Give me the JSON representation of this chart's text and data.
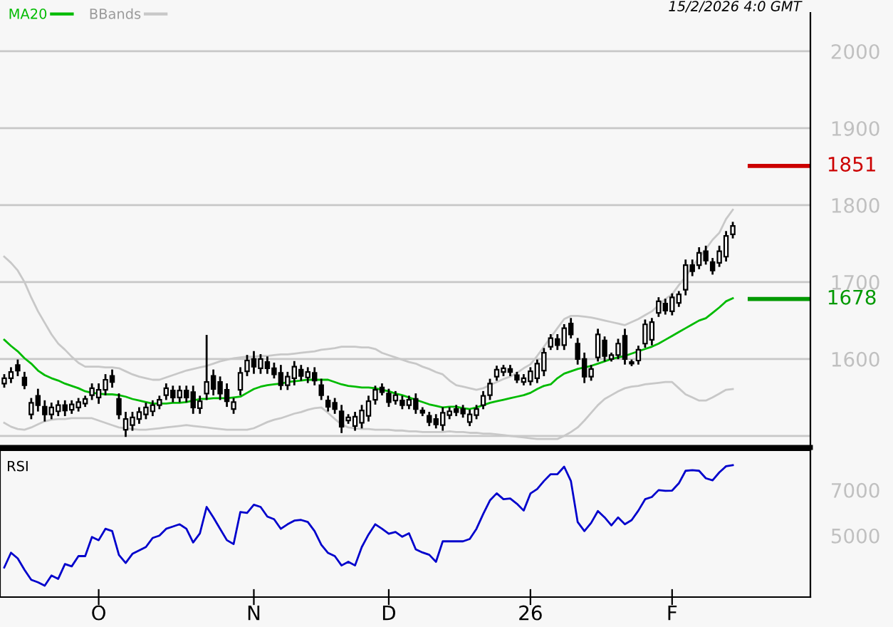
{
  "chart_data": [
    {
      "type": "candlestick",
      "categories": [
        null,
        null,
        null,
        null,
        null,
        null,
        null,
        null,
        null,
        null,
        null,
        null,
        null,
        null,
        null,
        null,
        null,
        null,
        null,
        null,
        null,
        null,
        null,
        null,
        null,
        null,
        null,
        null,
        null,
        null,
        null,
        null,
        null,
        null,
        null,
        null,
        null,
        null,
        null,
        null,
        null,
        null,
        null,
        null,
        null,
        null,
        null,
        null,
        null,
        null,
        null,
        null,
        null,
        null,
        null,
        null,
        null,
        null,
        null,
        null,
        null,
        null,
        null,
        null,
        null,
        null,
        null,
        null,
        null,
        null,
        null,
        null,
        null,
        null,
        null,
        null,
        null,
        null,
        null,
        null,
        null,
        null,
        null,
        null,
        null,
        null,
        null,
        null,
        null,
        null,
        null,
        null,
        null,
        null,
        null,
        null,
        null,
        null,
        null,
        null,
        null,
        null,
        null,
        null,
        null,
        null,
        null,
        null,
        null
      ],
      "ohlc": [
        [
          1568,
          1579,
          1564,
          1575
        ],
        [
          1575,
          1588,
          1570,
          1583
        ],
        [
          1592,
          1598,
          1579,
          1585
        ],
        [
          1576,
          1582,
          1562,
          1566
        ],
        [
          1528,
          1548,
          1523,
          1543
        ],
        [
          1552,
          1560,
          1533,
          1540
        ],
        [
          1538,
          1545,
          1520,
          1528
        ],
        [
          1528,
          1542,
          1523,
          1537
        ],
        [
          1532,
          1545,
          1527,
          1540
        ],
        [
          1540,
          1545,
          1527,
          1533
        ],
        [
          1534,
          1545,
          1530,
          1541
        ],
        [
          1537,
          1548,
          1533,
          1544
        ],
        [
          1542,
          1551,
          1539,
          1548
        ],
        [
          1553,
          1567,
          1548,
          1562
        ],
        [
          1550,
          1567,
          1543,
          1560
        ],
        [
          1560,
          1579,
          1554,
          1573
        ],
        [
          1578,
          1585,
          1564,
          1570
        ],
        [
          1548,
          1554,
          1523,
          1528
        ],
        [
          1508,
          1530,
          1500,
          1522
        ],
        [
          1514,
          1530,
          1508,
          1524
        ],
        [
          1522,
          1536,
          1517,
          1531
        ],
        [
          1528,
          1542,
          1523,
          1537
        ],
        [
          1532,
          1545,
          1527,
          1540
        ],
        [
          1540,
          1551,
          1536,
          1547
        ],
        [
          1553,
          1567,
          1548,
          1562
        ],
        [
          1559,
          1564,
          1545,
          1550
        ],
        [
          1550,
          1564,
          1545,
          1559
        ],
        [
          1559,
          1564,
          1545,
          1550
        ],
        [
          1557,
          1564,
          1530,
          1537
        ],
        [
          1536,
          1551,
          1530,
          1545
        ],
        [
          1555,
          1630,
          1548,
          1570
        ],
        [
          1578,
          1585,
          1554,
          1561
        ],
        [
          1570,
          1576,
          1548,
          1555
        ],
        [
          1560,
          1567,
          1539,
          1545
        ],
        [
          1535,
          1548,
          1530,
          1544
        ],
        [
          1560,
          1588,
          1554,
          1582
        ],
        [
          1584,
          1604,
          1579,
          1598
        ],
        [
          1600,
          1609,
          1582,
          1590
        ],
        [
          1588,
          1605,
          1582,
          1600
        ],
        [
          1596,
          1602,
          1582,
          1588
        ],
        [
          1588,
          1594,
          1576,
          1580
        ],
        [
          1582,
          1591,
          1561,
          1566
        ],
        [
          1566,
          1582,
          1561,
          1577
        ],
        [
          1575,
          1596,
          1567,
          1590
        ],
        [
          1586,
          1591,
          1573,
          1578
        ],
        [
          1576,
          1588,
          1570,
          1583
        ],
        [
          1582,
          1588,
          1567,
          1572
        ],
        [
          1566,
          1573,
          1548,
          1553
        ],
        [
          1546,
          1551,
          1533,
          1538
        ],
        [
          1543,
          1548,
          1530,
          1535
        ],
        [
          1532,
          1539,
          1505,
          1512
        ],
        [
          1520,
          1527,
          1517,
          1524
        ],
        [
          1513,
          1530,
          1508,
          1525
        ],
        [
          1517,
          1539,
          1511,
          1533
        ],
        [
          1526,
          1551,
          1520,
          1545
        ],
        [
          1547,
          1564,
          1542,
          1560
        ],
        [
          1563,
          1567,
          1554,
          1557
        ],
        [
          1555,
          1560,
          1539,
          1544
        ],
        [
          1546,
          1557,
          1542,
          1553
        ],
        [
          1546,
          1551,
          1536,
          1540
        ],
        [
          1540,
          1551,
          1536,
          1547
        ],
        [
          1548,
          1554,
          1530,
          1535
        ],
        [
          1533,
          1536,
          1527,
          1530
        ],
        [
          1526,
          1530,
          1514,
          1518
        ],
        [
          1522,
          1527,
          1511,
          1515
        ],
        [
          1514,
          1536,
          1508,
          1530
        ],
        [
          1527,
          1536,
          1523,
          1532
        ],
        [
          1535,
          1539,
          1527,
          1531
        ],
        [
          1535,
          1539,
          1525,
          1529
        ],
        [
          1518,
          1533,
          1514,
          1528
        ],
        [
          1527,
          1539,
          1523,
          1535
        ],
        [
          1540,
          1557,
          1536,
          1552
        ],
        [
          1553,
          1573,
          1548,
          1568
        ],
        [
          1577,
          1590,
          1573,
          1586
        ],
        [
          1583,
          1591,
          1579,
          1588
        ],
        [
          1587,
          1591,
          1579,
          1583
        ],
        [
          1579,
          1582,
          1570,
          1573
        ],
        [
          1570,
          1579,
          1567,
          1575
        ],
        [
          1571,
          1588,
          1567,
          1584
        ],
        [
          1575,
          1598,
          1570,
          1594
        ],
        [
          1585,
          1613,
          1579,
          1608
        ],
        [
          1616,
          1631,
          1613,
          1627
        ],
        [
          1626,
          1631,
          1613,
          1618
        ],
        [
          1618,
          1644,
          1613,
          1640
        ],
        [
          1646,
          1652,
          1628,
          1632
        ],
        [
          1620,
          1626,
          1594,
          1600
        ],
        [
          1600,
          1607,
          1570,
          1577
        ],
        [
          1577,
          1591,
          1573,
          1587
        ],
        [
          1602,
          1638,
          1598,
          1632
        ],
        [
          1624,
          1628,
          1598,
          1604
        ],
        [
          1600,
          1607,
          1598,
          1605
        ],
        [
          1605,
          1625,
          1601,
          1620
        ],
        [
          1630,
          1638,
          1594,
          1600
        ],
        [
          1594,
          1598,
          1592,
          1596
        ],
        [
          1598,
          1616,
          1594,
          1612
        ],
        [
          1620,
          1650,
          1616,
          1645
        ],
        [
          1625,
          1652,
          1619,
          1648
        ],
        [
          1660,
          1679,
          1656,
          1675
        ],
        [
          1672,
          1677,
          1659,
          1663
        ],
        [
          1662,
          1684,
          1658,
          1680
        ],
        [
          1673,
          1687,
          1669,
          1684
        ],
        [
          1690,
          1728,
          1684,
          1722
        ],
        [
          1722,
          1728,
          1709,
          1714
        ],
        [
          1722,
          1744,
          1718,
          1738
        ],
        [
          1740,
          1746,
          1724,
          1728
        ],
        [
          1726,
          1730,
          1711,
          1715
        ],
        [
          1725,
          1746,
          1721,
          1740
        ],
        [
          1733,
          1765,
          1728,
          1760
        ],
        [
          1762,
          1777,
          1758,
          1773
        ]
      ],
      "series": [
        {
          "name": "MA20",
          "type": "line",
          "color": "#00bb00",
          "values": [
            1625,
            1617,
            1610,
            1601,
            1594,
            1585,
            1579,
            1575,
            1572,
            1568,
            1565,
            1562,
            1558,
            1556,
            1555,
            1554,
            1554,
            1553,
            1551,
            1548,
            1546,
            1544,
            1542,
            1542,
            1542,
            1543,
            1543,
            1544,
            1546,
            1548,
            1548,
            1549,
            1549,
            1549,
            1550,
            1551,
            1556,
            1561,
            1564,
            1566,
            1567,
            1568,
            1570,
            1571,
            1572,
            1573,
            1573,
            1573,
            1573,
            1570,
            1567,
            1565,
            1564,
            1563,
            1563,
            1562,
            1560,
            1558,
            1555,
            1553,
            1550,
            1547,
            1544,
            1541,
            1539,
            1537,
            1538,
            1538,
            1536,
            1535,
            1537,
            1540,
            1543,
            1545,
            1547,
            1549,
            1551,
            1553,
            1556,
            1561,
            1565,
            1567,
            1575,
            1581,
            1584,
            1587,
            1589,
            1591,
            1594,
            1597,
            1600,
            1602,
            1604,
            1607,
            1610,
            1613,
            1616,
            1620,
            1625,
            1630,
            1635,
            1640,
            1645,
            1650,
            1653,
            1660,
            1667,
            1675,
            1679
          ]
        },
        {
          "name": "BBands",
          "type": "line",
          "color": "#c8c8c8",
          "values": [
            1733,
            1725,
            1715,
            1700,
            1680,
            1662,
            1647,
            1632,
            1620,
            1612,
            1603,
            1595,
            1590,
            1590,
            1590,
            1589,
            1589,
            1588,
            1584,
            1580,
            1577,
            1575,
            1573,
            1573,
            1576,
            1579,
            1582,
            1585,
            1587,
            1589,
            1591,
            1594,
            1597,
            1599,
            1601,
            1602,
            1603,
            1603,
            1604,
            1604,
            1605,
            1606,
            1606,
            1607,
            1608,
            1609,
            1610,
            1612,
            1613,
            1614,
            1616,
            1616,
            1616,
            1615,
            1615,
            1613,
            1608,
            1605,
            1602,
            1599,
            1596,
            1594,
            1590,
            1587,
            1583,
            1580,
            1572,
            1566,
            1564,
            1562,
            1560,
            1562,
            1566,
            1570,
            1574,
            1577,
            1582,
            1588,
            1593,
            1604,
            1616,
            1628,
            1640,
            1652,
            1656,
            1656,
            1655,
            1654,
            1652,
            1650,
            1648,
            1646,
            1644,
            1648,
            1652,
            1657,
            1662,
            1670,
            1678,
            1684,
            1696,
            1707,
            1720,
            1732,
            1743,
            1755,
            1764,
            1782,
            1794
          ]
        },
        {
          "type": "line",
          "color": "#c8c8c8",
          "values": [
            1517,
            1512,
            1509,
            1508,
            1511,
            1515,
            1519,
            1521,
            1522,
            1522,
            1523,
            1523,
            1523,
            1523,
            1520,
            1517,
            1514,
            1511,
            1510,
            1509,
            1508,
            1508,
            1509,
            1510,
            1511,
            1512,
            1513,
            1514,
            1513,
            1512,
            1511,
            1510,
            1509,
            1508,
            1508,
            1508,
            1508,
            1510,
            1514,
            1518,
            1521,
            1523,
            1526,
            1529,
            1531,
            1534,
            1536,
            1537,
            1530,
            1522,
            1515,
            1511,
            1510,
            1509,
            1509,
            1508,
            1508,
            1508,
            1507,
            1507,
            1506,
            1506,
            1505,
            1505,
            1505,
            1505,
            1506,
            1505,
            1505,
            1504,
            1504,
            1503,
            1503,
            1502,
            1501,
            1500,
            1499,
            1498,
            1497,
            1496,
            1496,
            1496,
            1496,
            1500,
            1505,
            1511,
            1520,
            1530,
            1540,
            1548,
            1553,
            1558,
            1562,
            1564,
            1565,
            1567,
            1568,
            1569,
            1570,
            1570,
            1562,
            1554,
            1550,
            1546,
            1546,
            1550,
            1555,
            1560,
            1561
          ]
        }
      ],
      "ylim": [
        1485,
        2050
      ],
      "yticks": [
        {
          "value": 1500,
          "label": null
        },
        1600,
        1700,
        1800,
        1900,
        2000
      ],
      "grid": "y",
      "legend": "top left",
      "tick_labels": "y",
      "ref_lines": [
        {
          "axis": "y",
          "value": 1851,
          "label": "1851",
          "color": "#cc0000"
        },
        {
          "axis": "y",
          "value": 1678,
          "label": "1678",
          "color": "#009900"
        }
      ],
      "annotations": [
        "15/2/2026 4:0 GMT"
      ]
    },
    {
      "type": "line",
      "title": "RSI",
      "categories": [
        null,
        null,
        null,
        null,
        null,
        null,
        null,
        null,
        null,
        null,
        null,
        null,
        null,
        null,
        "O",
        null,
        null,
        null,
        null,
        null,
        null,
        null,
        null,
        null,
        null,
        null,
        null,
        null,
        null,
        null,
        null,
        null,
        null,
        null,
        null,
        null,
        null,
        "N",
        null,
        null,
        null,
        null,
        null,
        null,
        null,
        null,
        null,
        null,
        null,
        null,
        null,
        null,
        null,
        null,
        null,
        null,
        null,
        "D",
        null,
        null,
        null,
        null,
        null,
        null,
        null,
        null,
        null,
        null,
        null,
        null,
        null,
        null,
        null,
        null,
        null,
        null,
        null,
        null,
        "26",
        null,
        null,
        null,
        null,
        null,
        null,
        null,
        null,
        null,
        null,
        null,
        null,
        null,
        null,
        null,
        null,
        null,
        null,
        null,
        null,
        "F",
        null,
        null,
        null,
        null,
        null,
        null,
        null,
        null,
        null
      ],
      "series": [
        {
          "color": "#0000cc",
          "values": [
            3600,
            4250,
            4000,
            3500,
            3060,
            2950,
            2800,
            3250,
            3100,
            3750,
            3650,
            4100,
            4100,
            4940,
            4800,
            5300,
            5200,
            4150,
            3800,
            4200,
            4350,
            4500,
            4900,
            5000,
            5300,
            5400,
            5500,
            5300,
            4700,
            5100,
            6260,
            5800,
            5300,
            4800,
            4630,
            6040,
            6000,
            6360,
            6260,
            5840,
            5720,
            5300,
            5500,
            5660,
            5690,
            5600,
            5200,
            4600,
            4240,
            4100,
            3690,
            3850,
            3690,
            4500,
            5050,
            5500,
            5300,
            5080,
            5160,
            4950,
            5100,
            4400,
            4260,
            4160,
            3850,
            4750,
            4750,
            4750,
            4750,
            4850,
            5300,
            5950,
            6550,
            6860,
            6600,
            6630,
            6400,
            6100,
            6850,
            7050,
            7400,
            7700,
            7700,
            8030,
            7400,
            5600,
            5200,
            5560,
            6080,
            5800,
            5450,
            5800,
            5500,
            5680,
            6100,
            6600,
            6700,
            7000,
            6970,
            6980,
            7300,
            7850,
            7880,
            7850,
            7520,
            7430,
            7780,
            8050,
            8100
          ]
        }
      ],
      "ylim": [
        2300,
        8750
      ],
      "yticks": [
        5000,
        7000
      ]
    }
  ]
}
